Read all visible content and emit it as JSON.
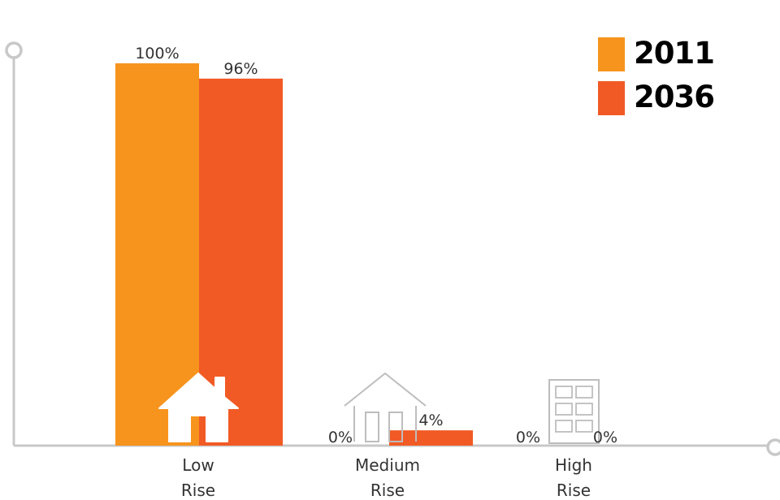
{
  "chart_data": {
    "type": "bar",
    "categories": [
      "Low Rise",
      "Medium Rise",
      "High Rise"
    ],
    "category_lines": [
      [
        "Low",
        "Rise"
      ],
      [
        "Medium",
        "Rise"
      ],
      [
        "High",
        "Rise"
      ]
    ],
    "category_icons": [
      "house-icon",
      "townhouse-icon",
      "apartment-building-icon"
    ],
    "series": [
      {
        "name": "2011",
        "values": [
          100,
          0,
          0
        ],
        "labels": [
          "100%",
          "0%",
          "0%"
        ],
        "color": "#F7941D"
      },
      {
        "name": "2036",
        "values": [
          96,
          4,
          0
        ],
        "labels": [
          "96%",
          "4%",
          "0%"
        ],
        "color": "#F15A24"
      }
    ],
    "ylim": [
      0,
      100
    ],
    "grid": false,
    "legend_position": "top-right",
    "axis_color": "#C8C8C8"
  }
}
